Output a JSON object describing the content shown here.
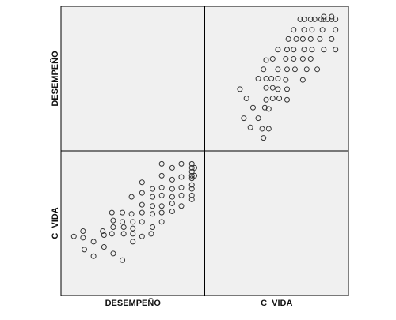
{
  "chart_data": {
    "type": "scatter-matrix",
    "variables": [
      {
        "name": "DESEMPEÑO",
        "values": [
          5,
          12,
          12,
          13,
          20,
          20,
          27,
          28,
          28,
          34,
          35,
          35,
          34,
          35,
          42,
          42,
          43,
          43,
          42,
          49,
          49,
          50,
          50,
          50,
          50,
          57,
          57,
          57,
          57,
          57,
          57,
          65,
          65,
          65,
          65,
          65,
          64,
          72,
          72,
          72,
          72,
          72,
          72,
          72,
          80,
          80,
          80,
          80,
          80,
          80,
          87,
          87,
          87,
          87,
          87,
          95,
          95,
          95,
          95,
          95,
          95,
          95,
          95,
          95,
          97,
          97
        ]
      },
      {
        "name": "C_VIDA",
        "values": [
          40,
          44,
          39,
          30,
          36,
          25,
          44,
          41,
          32,
          58,
          52,
          47,
          42,
          27,
          58,
          51,
          47,
          42,
          22,
          70,
          57,
          51,
          46,
          42,
          36,
          81,
          73,
          64,
          58,
          51,
          40,
          76,
          70,
          63,
          57,
          47,
          42,
          95,
          86,
          77,
          71,
          63,
          58,
          51,
          92,
          83,
          76,
          70,
          65,
          59,
          95,
          85,
          77,
          71,
          63,
          95,
          92,
          89,
          86,
          84,
          79,
          76,
          71,
          68,
          92,
          86
        ]
      }
    ],
    "xlim": [
      0,
      100
    ],
    "ylim": [
      0,
      100
    ],
    "color": "#333333"
  }
}
